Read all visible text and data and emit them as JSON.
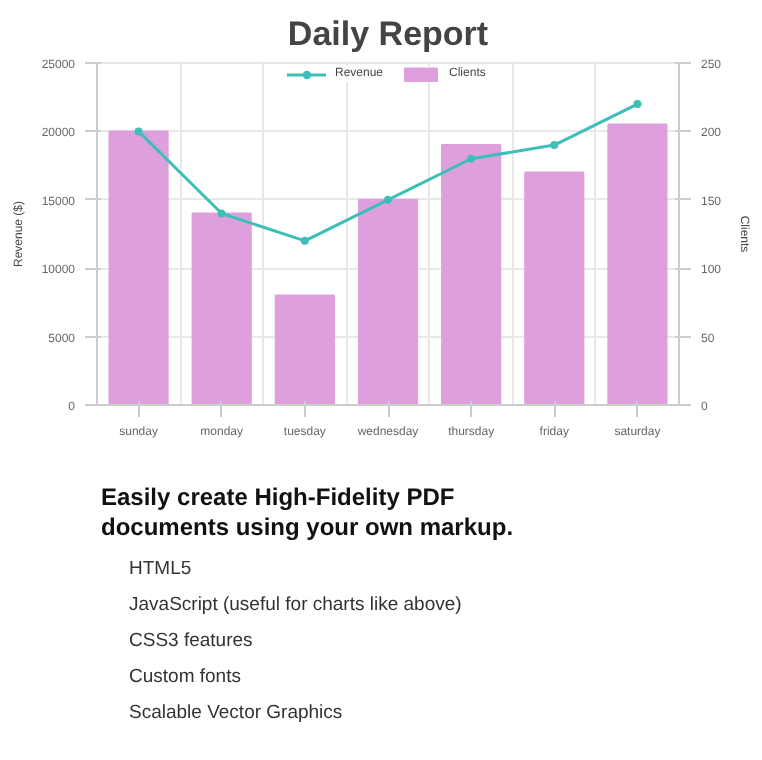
{
  "chart_data": {
    "type": "bar",
    "title": "Daily Report",
    "ylabel": "Revenue ($)",
    "y2label": "Clients",
    "categories": [
      "sunday",
      "monday",
      "tuesday",
      "wednesday",
      "thursday",
      "friday",
      "saturday"
    ],
    "series": [
      {
        "name": "Revenue",
        "type": "line",
        "color": "#3dbfb8",
        "values": [
          20000,
          14000,
          12000,
          15000,
          18000,
          19000,
          22000
        ]
      },
      {
        "name": "Clients",
        "axis": "y2",
        "color": "#dda0dd",
        "values": [
          200,
          140,
          80,
          150,
          190,
          170,
          205
        ]
      }
    ],
    "ylim": [
      0,
      25000
    ],
    "yticks": [
      0,
      5000,
      10000,
      15000,
      20000,
      25000
    ],
    "y2lim": [
      0,
      250
    ],
    "y2ticks": [
      0,
      50,
      100,
      150,
      200,
      250
    ],
    "grid": true,
    "legend": "top",
    "marker": "circle",
    "annotations": [
      "Easily create High-Fidelity PDF documents using your own markup.",
      "HTML5",
      "JavaScript (useful for charts like above)",
      "CSS3 features",
      "Custom fonts",
      "Scalable Vector Graphics"
    ]
  }
}
